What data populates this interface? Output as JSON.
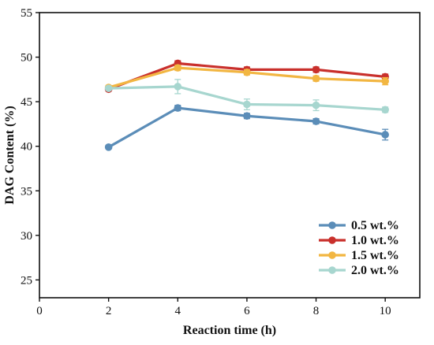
{
  "chart_data": {
    "type": "line",
    "xlabel": "Reaction time (h)",
    "ylabel": "DAG Content (%)",
    "xlim": [
      0,
      11
    ],
    "ylim": [
      23,
      55
    ],
    "x_ticks": [
      0,
      2,
      4,
      6,
      8,
      10
    ],
    "y_ticks": [
      25,
      30,
      35,
      40,
      45,
      50,
      55
    ],
    "x_tick_labels": [
      "0",
      "2",
      "4",
      "6",
      "8",
      "10"
    ],
    "y_tick_labels": [
      "25",
      "30",
      "35",
      "40",
      "45",
      "50",
      "55"
    ],
    "legend_position": "bottom-right",
    "grid": false,
    "x": [
      2,
      4,
      6,
      8,
      10
    ],
    "series": [
      {
        "name": "0.5 wt.%",
        "color": "#5b8db8",
        "values": [
          39.9,
          44.3,
          43.4,
          42.8,
          41.3
        ],
        "errors": [
          0.2,
          0.3,
          0.3,
          0.3,
          0.6
        ]
      },
      {
        "name": "1.0 wt.%",
        "color": "#c9302c",
        "values": [
          46.4,
          49.3,
          48.6,
          48.6,
          47.8
        ],
        "errors": [
          0.2,
          0.3,
          0.3,
          0.3,
          0.3
        ]
      },
      {
        "name": "1.5 wt.%",
        "color": "#f2b642",
        "values": [
          46.6,
          48.8,
          48.3,
          47.6,
          47.3
        ],
        "errors": [
          0.2,
          0.3,
          0.3,
          0.3,
          0.4
        ]
      },
      {
        "name": "2.0 wt.%",
        "color": "#a7d6cf",
        "values": [
          46.5,
          46.7,
          44.7,
          44.6,
          44.1
        ],
        "errors": [
          0.2,
          0.8,
          0.6,
          0.6,
          0.3
        ]
      }
    ]
  }
}
